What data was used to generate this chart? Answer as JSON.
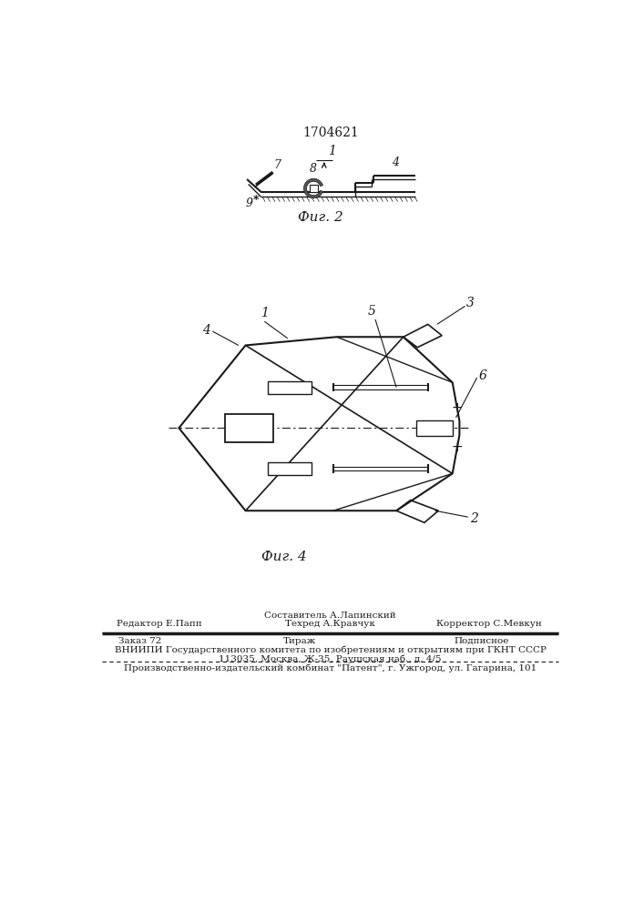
{
  "patent_number": "1704621",
  "fig2_label": "Фиг. 2",
  "fig4_label": "Фиг. 4",
  "bottom_text_line0_center": "Составитель А.Лапинский",
  "bottom_text_line1_left": "Редактор Е.Папп",
  "bottom_text_line1_center": "Техред А.Кравчук",
  "bottom_text_line1_right": "Корректор С.Мевкун",
  "bottom_text_line2_left": "Заказ 72",
  "bottom_text_line2_center": "Тираж",
  "bottom_text_line2_right": "Подписное",
  "bottom_text_line3": "ВНИИПИ Государственного комитета по изобретениям и открытиям при ГКНТ СССР",
  "bottom_text_line4": "113035, Москва, Ж-35, Раушская наб., д. 4/5",
  "bottom_text_line5": "Производственно-издательский комбинат \"Патент\", г. Ужгород, ул. Гагарина, 101",
  "bg_color": "#ffffff",
  "line_color": "#1a1a1a"
}
